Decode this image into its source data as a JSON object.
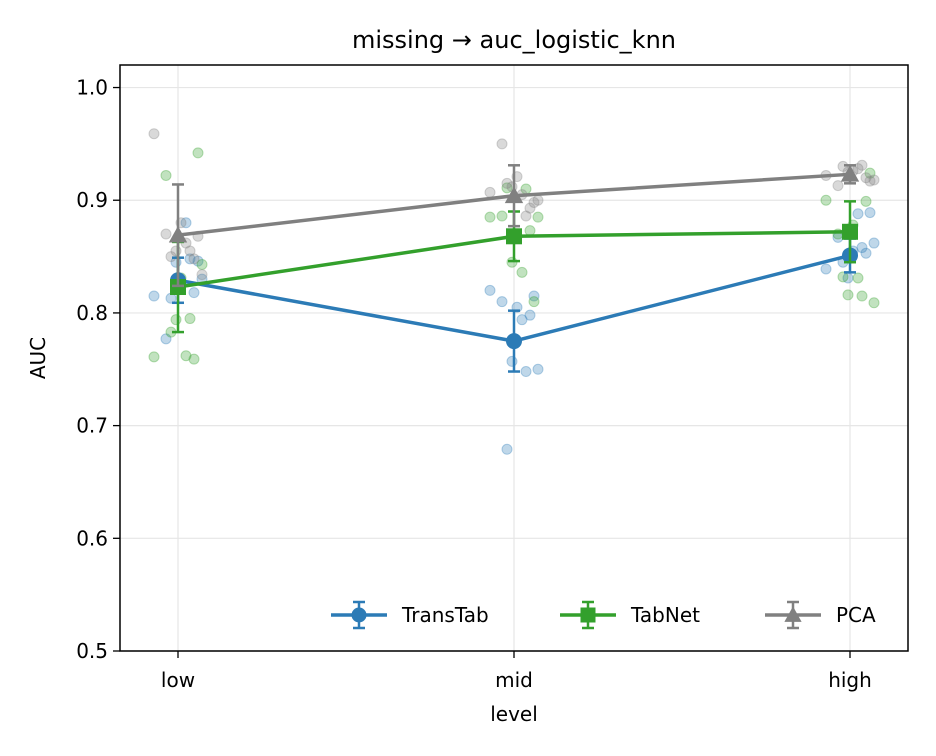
{
  "chart_data": {
    "type": "line",
    "title": "missing → auc_logistic_knn",
    "xlabel": "level",
    "ylabel": "AUC",
    "categories": [
      "low",
      "mid",
      "high"
    ],
    "ylim": [
      0.5,
      1.02
    ],
    "yticks": [
      "0.5",
      "0.6",
      "0.7",
      "0.8",
      "0.9",
      "1.0"
    ],
    "grid": true,
    "legend_position": "bottom-right",
    "series": [
      {
        "name": "TransTab",
        "color": "#2c7bb6",
        "marker": "circle",
        "values": [
          0.829,
          0.775,
          0.851
        ],
        "error": [
          0.02,
          0.027,
          0.015
        ],
        "points": [
          [
            0.815,
            0.845,
            0.848,
            0.83,
            0.813,
            0.88,
            0.846,
            0.777,
            0.827,
            0.818
          ],
          [
            0.81,
            0.805,
            0.798,
            0.82,
            0.757,
            0.748,
            0.75,
            0.679,
            0.794,
            0.815
          ],
          [
            0.845,
            0.888,
            0.889,
            0.867,
            0.855,
            0.853,
            0.839,
            0.831,
            0.858,
            0.862
          ]
        ]
      },
      {
        "name": "TabNet",
        "color": "#33a02c",
        "marker": "square",
        "values": [
          0.823,
          0.868,
          0.872
        ],
        "error": [
          0.04,
          0.022,
          0.027
        ],
        "points": [
          [
            0.762,
            0.942,
            0.922,
            0.831,
            0.759,
            0.761,
            0.794,
            0.795,
            0.843,
            0.783
          ],
          [
            0.91,
            0.885,
            0.911,
            0.836,
            0.81,
            0.886,
            0.868,
            0.873,
            0.885,
            0.845
          ],
          [
            0.899,
            0.9,
            0.816,
            0.815,
            0.809,
            0.832,
            0.831,
            0.924,
            0.87,
            0.878
          ]
        ]
      },
      {
        "name": "PCA",
        "color": "#808080",
        "marker": "triangle",
        "values": [
          0.869,
          0.904,
          0.923
        ],
        "error": [
          0.045,
          0.027,
          0.008
        ],
        "points": [
          [
            0.959,
            0.855,
            0.855,
            0.834,
            0.85,
            0.862,
            0.868,
            0.87,
            0.88,
            0.848
          ],
          [
            0.95,
            0.921,
            0.893,
            0.907,
            0.912,
            0.886,
            0.9,
            0.915,
            0.905,
            0.898
          ],
          [
            0.93,
            0.928,
            0.917,
            0.913,
            0.926,
            0.92,
            0.922,
            0.925,
            0.931,
            0.918
          ]
        ]
      }
    ]
  }
}
